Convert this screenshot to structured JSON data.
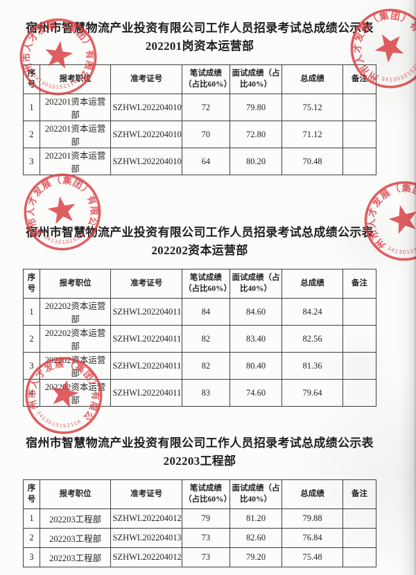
{
  "seal": {
    "company": "宿州市人才发展（集团）有限公司",
    "code": "3413010152114",
    "color": "#d93a3f"
  },
  "table_columns": [
    "序号",
    "报考职位",
    "准考证号",
    "笔试成绩（占比60%）",
    "面试成绩（占比40%）",
    "总成绩",
    "备注"
  ],
  "sections": [
    {
      "title_line1": "宿州市智慧物流产业投资有限公司工作人员招录考试总成绩公示表",
      "title_line2": "202201岗资本运营部",
      "rows": [
        [
          "1",
          "202201资本运营部",
          "SZHWL2022040104",
          "72",
          "79.80",
          "75.12",
          ""
        ],
        [
          "2",
          "202201资本运营部",
          "SZHWL2022040102",
          "70",
          "72.80",
          "71.12",
          ""
        ],
        [
          "3",
          "202201资本运营部",
          "SZHWL2022040101",
          "64",
          "80.20",
          "70.48",
          ""
        ]
      ]
    },
    {
      "title_line1": "宿州市智慧物流产业投资有限公司工作人员招录考试总成绩公示表",
      "title_line2": "202202资本运营部",
      "rows": [
        [
          "1",
          "202202资本运营部",
          "SZHWL2022040118",
          "84",
          "84.60",
          "84.24",
          ""
        ],
        [
          "2",
          "202202资本运营部",
          "SZHWL2022040113",
          "82",
          "83.40",
          "82.56",
          ""
        ],
        [
          "3",
          "202202资本运营部",
          "SZHWL2022040115",
          "82",
          "80.40",
          "81.36",
          ""
        ],
        [
          "4",
          "202202资本运营部",
          "SZHWL2022040112",
          "83",
          "74.60",
          "79.64",
          ""
        ]
      ]
    },
    {
      "title_line1": "宿州市智慧物流产业投资有限公司工作人员招录考试总成绩公示表",
      "title_line2": "202203工程部",
      "rows": [
        [
          "1",
          "202203工程部",
          "SZHWL2022040122",
          "79",
          "81.20",
          "79.88",
          ""
        ],
        [
          "2",
          "202203工程部",
          "SZHWL2022040130",
          "73",
          "82.60",
          "76.84",
          ""
        ],
        [
          "3",
          "202203工程部",
          "SZHWL2022040123",
          "73",
          "79.20",
          "75.48",
          ""
        ]
      ]
    }
  ]
}
